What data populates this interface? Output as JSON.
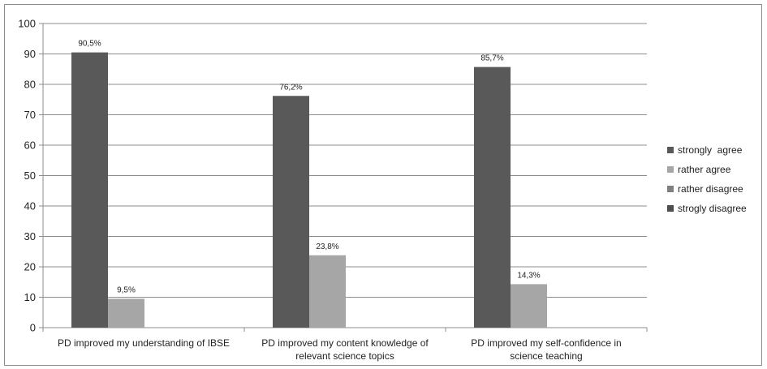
{
  "chart_data": {
    "type": "bar",
    "categories": [
      [
        "PD improved my understanding of IBSE"
      ],
      [
        "PD improved my content knowledge of",
        "relevant science topics"
      ],
      [
        "PD improved my self-confidence in",
        "science teaching"
      ]
    ],
    "series": [
      {
        "name": "strongly  agree",
        "color": "#595959",
        "values": [
          90.5,
          76.2,
          85.7
        ],
        "labels": [
          "90,5%",
          "76,2%",
          "85,7%"
        ]
      },
      {
        "name": "rather agree",
        "color": "#a6a6a6",
        "values": [
          9.5,
          23.8,
          14.3
        ],
        "labels": [
          "9,5%",
          "23,8%",
          "14,3%"
        ]
      },
      {
        "name": "rather disagree",
        "color": "#808080",
        "values": [
          0,
          0,
          0
        ],
        "labels": [
          "",
          "",
          ""
        ]
      },
      {
        "name": "strogly disagree",
        "color": "#4d4d4d",
        "values": [
          0,
          0,
          0
        ],
        "labels": [
          "",
          "",
          ""
        ]
      }
    ],
    "ylim": [
      0,
      100
    ],
    "yticks": [
      0,
      10,
      20,
      30,
      40,
      50,
      60,
      70,
      80,
      90,
      100
    ],
    "grid": true,
    "legend": "right"
  }
}
